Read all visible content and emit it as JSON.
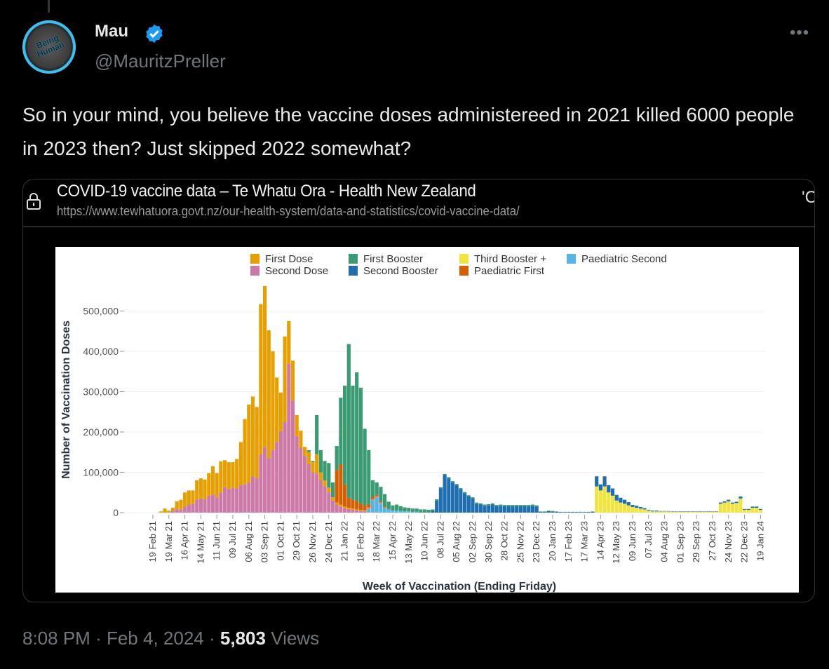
{
  "tweet": {
    "author_name": "Mau",
    "handle": "@MauritzPreller",
    "avatar_text": "Being Human",
    "more_icon": "•••",
    "text": "So in your mind, you believe the vaccine doses administereed in 2021 killed 6000 people in 2023 then?  Just skipped 2022 somewhat?",
    "time": "8:08 PM",
    "separator": "·",
    "date": "Feb 4, 2024",
    "views_count": "5,803",
    "views_label": "Views"
  },
  "card": {
    "title": "COVID-19 vaccine data – Te Whatu Ora - Health New Zealand",
    "url": "https://www.tewhatuora.govt.nz/our-health-system/data-and-statistics/covid-vaccine-data/",
    "cut_text": "'C"
  },
  "chart_data": {
    "type": "bar",
    "stacked": true,
    "xlabel": "Week of Vaccination (Ending Friday)",
    "ylabel": "Number of Vaccination Doses",
    "unit": "thousands of doses per week",
    "first_week": "19 Feb 21",
    "n_weeks": 153,
    "ylim": [
      0,
      570
    ],
    "yticks": [
      0,
      100,
      200,
      300,
      400,
      500
    ],
    "ytick_labels": [
      "0",
      "100,000",
      "200,000",
      "300,000",
      "400,000",
      "500,000"
    ],
    "xtick_every_weeks": 4,
    "xtick_labels": [
      "19 Feb 21",
      "19 Mar 21",
      "16 Apr 21",
      "14 May 21",
      "11 Jun 21",
      "09 Jul 21",
      "06 Aug 21",
      "03 Sep 21",
      "01 Oct 21",
      "29 Oct 21",
      "26 Nov 21",
      "24 Dec 21",
      "21 Jan 22",
      "18 Feb 22",
      "18 Mar 22",
      "15 Apr 22",
      "13 May 22",
      "10 Jun 22",
      "08 Jul 22",
      "05 Aug 22",
      "02 Sep 22",
      "30 Sep 22",
      "28 Oct 22",
      "25 Nov 22",
      "23 Dec 22",
      "20 Jan 23",
      "17 Feb 23",
      "17 Mar 23",
      "14 Apr 23",
      "12 May 23",
      "09 Jun 23",
      "07 Jul 23",
      "04 Aug 23",
      "01 Sep 23",
      "29 Sep 23",
      "27 Oct 23",
      "24 Nov 23",
      "22 Dec 23",
      "19 Jan 24"
    ],
    "legend_position": "top",
    "legend": [
      {
        "key": "first_dose",
        "label": "First Dose"
      },
      {
        "key": "second_dose",
        "label": "Second Dose"
      },
      {
        "key": "first_booster",
        "label": "First Booster"
      },
      {
        "key": "second_booster",
        "label": "Second Booster"
      },
      {
        "key": "third_booster",
        "label": "Third Booster +"
      },
      {
        "key": "paed_first",
        "label": "Paediatric First"
      },
      {
        "key": "paed_second",
        "label": "Paediatric Second"
      }
    ],
    "stack_order": [
      "third_booster",
      "paed_second",
      "second_dose",
      "first_dose",
      "paed_first",
      "second_booster",
      "first_booster"
    ],
    "series": {
      "first_dose": {
        "name": "First Dose",
        "color": "#E69F00",
        "start_week": 2,
        "values": [
          3,
          10,
          5,
          7,
          20,
          24,
          35,
          35,
          33,
          48,
          50,
          49,
          56,
          70,
          60,
          77,
          67,
          67,
          63,
          73,
          107,
          162,
          193,
          198,
          177,
          372,
          399,
          317,
          245,
          160,
          96,
          212,
          105,
          99,
          52,
          43,
          23,
          30,
          25,
          48,
          20,
          15,
          12,
          8,
          5,
          5,
          4,
          3,
          3,
          2,
          2,
          2,
          2,
          1,
          1,
          1,
          1
        ]
      },
      "second_dose": {
        "name": "Second Dose",
        "color": "#CC79A7",
        "start_week": 5,
        "values": [
          5,
          8,
          8,
          15,
          20,
          22,
          32,
          35,
          33,
          42,
          45,
          38,
          50,
          63,
          58,
          62,
          60,
          68,
          70,
          75,
          90,
          85,
          145,
          163,
          135,
          155,
          175,
          202,
          225,
          370,
          278,
          190,
          160,
          140,
          120,
          100,
          97,
          80,
          65,
          50,
          30,
          20,
          15,
          11,
          9,
          7,
          6,
          5,
          4,
          3,
          3,
          2,
          2
        ]
      },
      "first_booster": {
        "name": "First Booster",
        "color": "#3A9B72",
        "start_week": 39,
        "values": [
          5,
          3,
          97,
          55,
          48,
          61,
          37,
          60,
          165,
          245,
          381,
          283,
          320,
          288,
          190,
          134,
          41,
          31,
          37,
          31,
          18,
          12,
          15,
          12,
          10,
          9,
          8,
          8,
          8,
          8,
          7,
          3,
          3,
          3,
          3,
          3,
          3,
          3,
          3,
          3,
          3,
          3,
          3,
          3,
          3,
          3,
          3,
          3,
          3,
          3,
          3,
          3,
          3,
          3,
          3,
          3,
          3,
          3,
          1,
          1,
          1,
          1,
          1,
          1,
          1,
          1,
          1,
          1,
          1,
          1,
          1,
          1
        ]
      },
      "paed_first": {
        "name": "Paediatric First",
        "color": "#D55E00",
        "start_week": 46,
        "values": [
          80,
          100,
          55,
          25,
          22,
          20,
          15,
          12,
          8,
          5,
          3,
          2,
          2,
          1
        ]
      },
      "paed_second": {
        "name": "Paediatric Second",
        "color": "#56B4E9",
        "start_week": 54,
        "values": [
          8,
          30,
          38,
          22,
          12,
          8,
          6,
          5,
          4,
          3,
          3,
          2,
          2
        ]
      },
      "second_booster": {
        "name": "Second Booster",
        "color": "#1F6FB0",
        "start_week": 70,
        "values": [
          5,
          30,
          60,
          93,
          85,
          75,
          68,
          58,
          48,
          40,
          35,
          22,
          20,
          17,
          18,
          20,
          16,
          17,
          16,
          16,
          16,
          16,
          16,
          16,
          16,
          17,
          15,
          2,
          2,
          4,
          3,
          2,
          1,
          1,
          1,
          1,
          1,
          1,
          1,
          1,
          2,
          25,
          15,
          25,
          18,
          18,
          14,
          12,
          10,
          8,
          5,
          5,
          4,
          3,
          2,
          2,
          2,
          1,
          1,
          1,
          1,
          1,
          1,
          1,
          1,
          1,
          1,
          1,
          1,
          1,
          1,
          1,
          3,
          3,
          4,
          3,
          3,
          5,
          2,
          2,
          3,
          3,
          2
        ]
      },
      "third_booster": {
        "name": "Third Booster +",
        "color": "#F0E442",
        "start_week": 111,
        "values": [
          65,
          55,
          65,
          50,
          42,
          30,
          25,
          22,
          18,
          14,
          12,
          10,
          8,
          5,
          3,
          3,
          3,
          3,
          3,
          2,
          2,
          2,
          2,
          2,
          2,
          2,
          2,
          2,
          2,
          2,
          2,
          22,
          25,
          28,
          22,
          24,
          35,
          7,
          7,
          12,
          12,
          7
        ]
      }
    }
  }
}
